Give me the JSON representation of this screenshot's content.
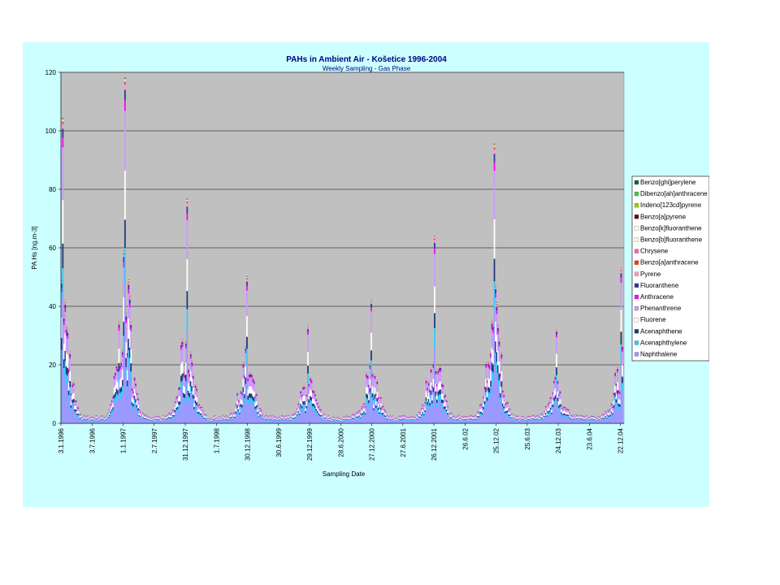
{
  "chart_data": {
    "type": "area",
    "stacked": true,
    "title": "PAHs in Ambient Air - Košetice 1996-2004",
    "subtitle": "Weekly Sampling - Gas Phase",
    "xlabel": "Sampling Date",
    "ylabel": "PA Hs [ng.m-3]",
    "ylim": [
      0,
      120
    ],
    "yticks": [
      0,
      20,
      40,
      60,
      80,
      100,
      120
    ],
    "grid": true,
    "legend_position": "right",
    "x_tick_labels": [
      "3.1.1996",
      "3.7.1996",
      "1.1.1997",
      "2.7.1997",
      "31.12.1997",
      "1.7.1998",
      "30.12.1998",
      "30.6.1999",
      "29.12.1999",
      "28.6.2000",
      "27.12.2000",
      "27.6.2001",
      "26.12.2001",
      "26.6.02",
      "25.12.02",
      "25.6.03",
      "24.12.03",
      "23.6.04",
      "22.12.04"
    ],
    "x_tick_dates": [
      "1996-01-03",
      "1996-07-03",
      "1997-01-01",
      "1997-07-02",
      "1997-12-31",
      "1998-07-01",
      "1998-12-30",
      "1999-06-30",
      "1999-12-29",
      "2000-06-28",
      "2000-12-27",
      "2001-06-27",
      "2001-12-26",
      "2002-06-26",
      "2002-12-25",
      "2003-06-25",
      "2003-12-24",
      "2004-06-23",
      "2004-12-22"
    ],
    "series": [
      {
        "name": "Naphthalene",
        "color": "#9999ff"
      },
      {
        "name": "Acenaphthylene",
        "color": "#33ccff"
      },
      {
        "name": "Acenaphthene",
        "color": "#1f3a7a"
      },
      {
        "name": "Fluorene",
        "color": "#ffffff"
      },
      {
        "name": "Phenanthrene",
        "color": "#cc99ff"
      },
      {
        "name": "Anthracene",
        "color": "#ff00ff"
      },
      {
        "name": "Fluoranthene",
        "color": "#333399"
      },
      {
        "name": "Pyrene",
        "color": "#ff99cc"
      },
      {
        "name": "Benzo[a]anthracene",
        "color": "#ff3300"
      },
      {
        "name": "Chrysene",
        "color": "#ff6699"
      },
      {
        "name": "Benzo[b]fluoranthene",
        "color": "#ffffcc"
      },
      {
        "name": "Benzo[k]fluoranthene",
        "color": "#ffffee"
      },
      {
        "name": "Benzo[a]pyrene",
        "color": "#660000"
      },
      {
        "name": "Indeno[123cd]pyrene",
        "color": "#99cc00"
      },
      {
        "name": "Dibenzo[ah]anthracene",
        "color": "#33cc33"
      },
      {
        "name": "Benzo[ghi]perylene",
        "color": "#006633"
      }
    ],
    "annual_peaks": [
      {
        "date": "1996-01-10",
        "total": 106
      },
      {
        "date": "1997-01-08",
        "total": 120
      },
      {
        "date": "1998-01-07",
        "total": 78
      },
      {
        "date": "1998-12-23",
        "total": 51
      },
      {
        "date": "1999-12-15",
        "total": 34
      },
      {
        "date": "2000-12-20",
        "total": 43
      },
      {
        "date": "2001-12-26",
        "total": 65
      },
      {
        "date": "2002-12-11",
        "total": 97
      },
      {
        "date": "2003-12-10",
        "total": 33
      },
      {
        "date": "2004-12-22",
        "total": 54
      }
    ]
  }
}
